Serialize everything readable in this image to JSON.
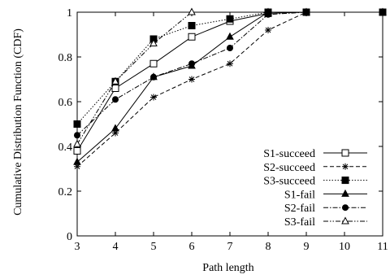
{
  "chart_data": {
    "type": "line",
    "title": "",
    "xlabel": "Path length",
    "ylabel": "Cumulative Distribution Function (CDF)",
    "xlim": [
      3,
      11
    ],
    "ylim": [
      0,
      1
    ],
    "xticks": [
      "3",
      "4",
      "5",
      "6",
      "7",
      "8",
      "9",
      "10",
      "11"
    ],
    "yticks": [
      "0",
      "0.2",
      "0.4",
      "0.6",
      "0.8",
      "1"
    ],
    "grid": false,
    "legend_position": "bottom-right",
    "series": [
      {
        "name": "S1-succeed",
        "marker": "open-square",
        "dash": "",
        "x": [
          3,
          4,
          5,
          6,
          7,
          8,
          9,
          11
        ],
        "y": [
          0.38,
          0.66,
          0.77,
          0.89,
          0.96,
          0.995,
          1.0,
          1.0
        ]
      },
      {
        "name": "S2-succeed",
        "marker": "asterisk",
        "dash": "5,3",
        "x": [
          3,
          4,
          5,
          6,
          7,
          8,
          9,
          11
        ],
        "y": [
          0.31,
          0.46,
          0.62,
          0.7,
          0.77,
          0.92,
          1.0,
          1.0
        ]
      },
      {
        "name": "S3-succeed",
        "marker": "filled-square",
        "dash": "1.5,2",
        "x": [
          3,
          4,
          5,
          6,
          7,
          8,
          9,
          11
        ],
        "y": [
          0.5,
          0.69,
          0.88,
          0.94,
          0.97,
          1.0,
          1.0,
          1.0
        ]
      },
      {
        "name": "S1-fail",
        "marker": "filled-triangle",
        "dash": "",
        "x": [
          3,
          4,
          5,
          6,
          7,
          8,
          9,
          11
        ],
        "y": [
          0.33,
          0.48,
          0.71,
          0.76,
          0.89,
          1.0,
          1.0,
          1.0
        ]
      },
      {
        "name": "S2-fail",
        "marker": "filled-circle",
        "dash": "6,2,1.5,2",
        "x": [
          3,
          4,
          5,
          6,
          7,
          8,
          9,
          11
        ],
        "y": [
          0.45,
          0.61,
          0.71,
          0.77,
          0.84,
          0.99,
          1.0,
          1.0
        ]
      },
      {
        "name": "S3-fail",
        "marker": "open-triangle",
        "dash": "6,2,1.5,2,1.5,2",
        "x": [
          3,
          4,
          5,
          6
        ],
        "y": [
          0.41,
          0.69,
          0.86,
          1.0
        ]
      }
    ]
  }
}
